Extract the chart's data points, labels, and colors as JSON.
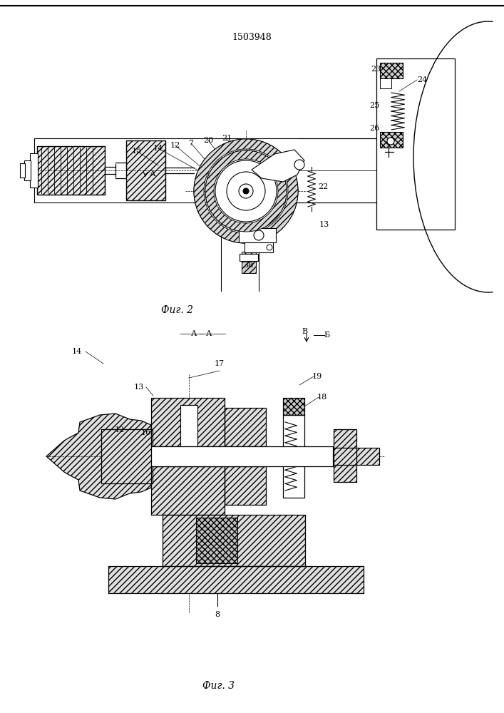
{
  "patent_number": "1503948",
  "fig2_caption": "Фиг. 2",
  "fig3_caption": "Фиг. 3",
  "fig3_section": "А – А",
  "bg_color": "#ffffff",
  "line_color": "#000000",
  "hatch_color": "#000000"
}
